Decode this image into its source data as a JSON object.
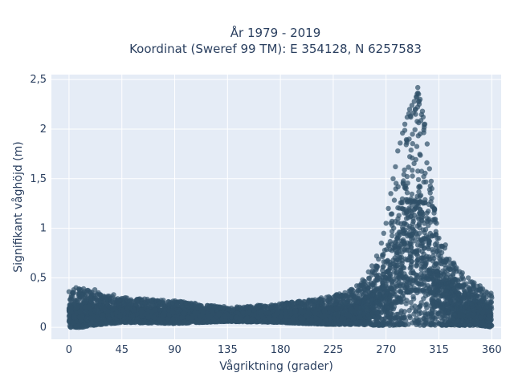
{
  "chart_data": {
    "type": "scatter",
    "title": "År 1979 - 2019",
    "subtitle": "Koordinat (Sweref 99 TM): E 354128, N 6257583",
    "xlabel": "Vågriktning (grader)",
    "ylabel": "Signifikant våghöjd (m)",
    "xlim": [
      -15,
      368
    ],
    "ylim": [
      -0.12,
      2.55
    ],
    "x_ticks": [
      0,
      45,
      90,
      135,
      180,
      225,
      270,
      315,
      360
    ],
    "x_tick_labels": [
      "0",
      "45",
      "90",
      "135",
      "180",
      "225",
      "270",
      "315",
      "360"
    ],
    "y_ticks": [
      0,
      0.5,
      1,
      1.5,
      2,
      2.5
    ],
    "y_tick_labels": [
      "0",
      "0,5",
      "1",
      "1,5",
      "2",
      "2,5"
    ],
    "grid": true,
    "legend": "none",
    "colors": {
      "plot_background": "#e5ecf6",
      "marker": "#2f5068",
      "text": "#2a3f5f"
    },
    "envelope": {
      "x": [
        0,
        10,
        20,
        45,
        90,
        135,
        180,
        200,
        225,
        245,
        260,
        270,
        275,
        280,
        285,
        290,
        295,
        298,
        300,
        305,
        310,
        315,
        320,
        330,
        340,
        350,
        360
      ],
      "y_min": [
        0.0,
        0.0,
        0.02,
        0.05,
        0.04,
        0.06,
        0.05,
        0.04,
        0.03,
        0.03,
        0.02,
        0.02,
        0.02,
        0.02,
        0.02,
        0.02,
        0.02,
        0.02,
        0.02,
        0.02,
        0.02,
        0.02,
        0.02,
        0.02,
        0.02,
        0.02,
        0.0
      ],
      "y_max": [
        0.38,
        0.4,
        0.36,
        0.3,
        0.27,
        0.2,
        0.24,
        0.27,
        0.32,
        0.4,
        0.6,
        0.85,
        1.2,
        1.65,
        1.95,
        2.2,
        2.35,
        2.42,
        2.3,
        1.9,
        1.3,
        0.9,
        0.85,
        0.6,
        0.5,
        0.4,
        0.35
      ]
    },
    "points": [
      [
        0,
        0.36
      ],
      [
        2,
        0.32
      ],
      [
        4,
        0.38
      ],
      [
        6,
        0.4
      ],
      [
        8,
        0.34
      ],
      [
        3,
        0.05
      ],
      [
        7,
        0.01
      ],
      [
        1,
        0.2
      ],
      [
        5,
        0.25
      ],
      [
        9,
        0.15
      ],
      [
        12,
        0.33
      ],
      [
        15,
        0.36
      ],
      [
        18,
        0.3
      ],
      [
        22,
        0.38
      ],
      [
        25,
        0.35
      ],
      [
        28,
        0.3
      ],
      [
        32,
        0.28
      ],
      [
        38,
        0.33
      ],
      [
        42,
        0.27
      ],
      [
        48,
        0.3
      ],
      [
        52,
        0.26
      ],
      [
        58,
        0.28
      ],
      [
        62,
        0.24
      ],
      [
        70,
        0.26
      ],
      [
        78,
        0.25
      ],
      [
        85,
        0.23
      ],
      [
        92,
        0.24
      ],
      [
        100,
        0.22
      ],
      [
        110,
        0.2
      ],
      [
        118,
        0.22
      ],
      [
        125,
        0.2
      ],
      [
        132,
        0.21
      ],
      [
        140,
        0.18
      ],
      [
        148,
        0.19
      ],
      [
        155,
        0.2
      ],
      [
        162,
        0.22
      ],
      [
        170,
        0.21
      ],
      [
        178,
        0.22
      ],
      [
        185,
        0.24
      ],
      [
        192,
        0.24
      ],
      [
        200,
        0.26
      ],
      [
        208,
        0.27
      ],
      [
        215,
        0.28
      ],
      [
        222,
        0.3
      ],
      [
        228,
        0.33
      ],
      [
        235,
        0.35
      ],
      [
        240,
        0.38
      ],
      [
        245,
        0.42
      ],
      [
        250,
        0.48
      ],
      [
        255,
        0.56
      ],
      [
        258,
        0.62
      ],
      [
        262,
        0.72
      ],
      [
        266,
        0.85
      ],
      [
        268,
        0.95
      ],
      [
        270,
        1.05
      ],
      [
        272,
        1.2
      ],
      [
        274,
        1.35
      ],
      [
        276,
        1.5
      ],
      [
        278,
        1.62
      ],
      [
        280,
        1.78
      ],
      [
        282,
        1.86
      ],
      [
        284,
        1.96
      ],
      [
        286,
        2.05
      ],
      [
        288,
        2.12
      ],
      [
        290,
        2.2
      ],
      [
        292,
        2.24
      ],
      [
        294,
        2.28
      ],
      [
        296,
        2.32
      ],
      [
        297,
        2.42
      ],
      [
        299,
        2.3
      ],
      [
        301,
        2.18
      ],
      [
        303,
        2.05
      ],
      [
        305,
        1.85
      ],
      [
        307,
        1.6
      ],
      [
        309,
        1.4
      ],
      [
        311,
        1.2
      ],
      [
        313,
        1.05
      ],
      [
        315,
        0.9
      ],
      [
        317,
        0.82
      ],
      [
        320,
        0.8
      ],
      [
        325,
        0.65
      ],
      [
        330,
        0.6
      ],
      [
        335,
        0.55
      ],
      [
        340,
        0.5
      ],
      [
        345,
        0.45
      ],
      [
        350,
        0.42
      ],
      [
        355,
        0.36
      ],
      [
        358,
        0.33
      ],
      [
        360,
        0.3
      ]
    ]
  }
}
